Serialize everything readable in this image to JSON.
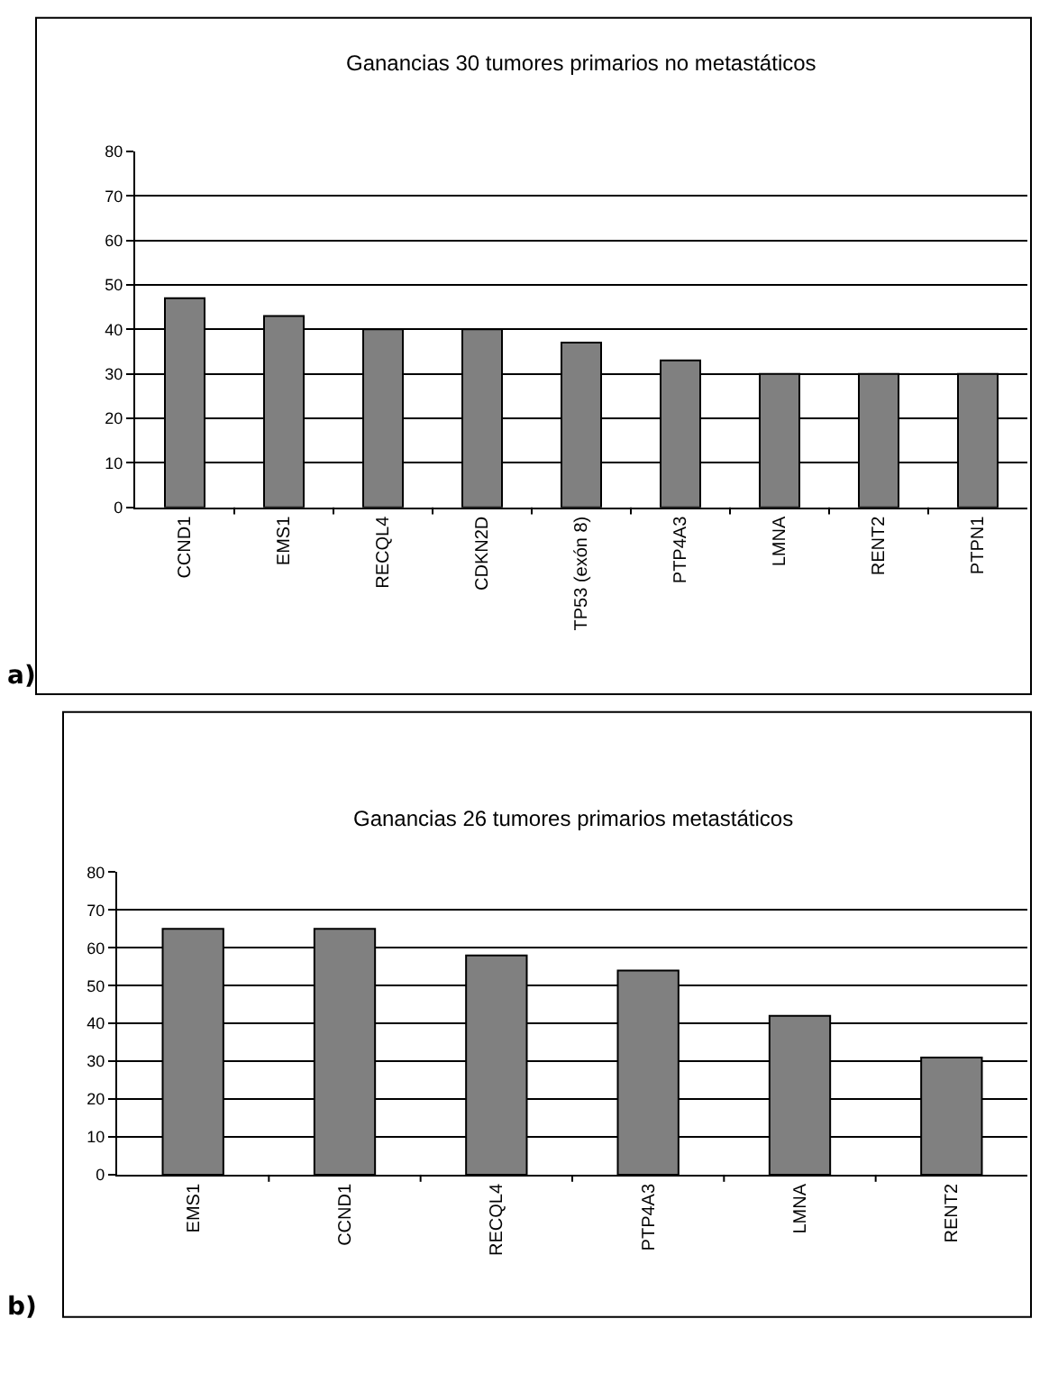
{
  "chart_data": [
    {
      "type": "bar",
      "title": "Ganancias 30 tumores primarios no metastáticos",
      "annotations": [
        "a)"
      ],
      "categories": [
        "CCND1",
        "EMS1",
        "RECQL4",
        "CDKN2D",
        "TP53 (exón 8)",
        "PTP4A3",
        "LMNA",
        "RENT2",
        "PTPN1"
      ],
      "values": [
        47,
        43,
        40,
        40,
        37,
        33,
        30,
        30,
        30
      ],
      "color": "#808080",
      "ylim": [
        0,
        80
      ],
      "yticks": [
        0,
        10,
        20,
        30,
        40,
        50,
        60,
        70,
        80
      ],
      "grid": "y",
      "legend": false
    },
    {
      "type": "bar",
      "title": "Ganancias 26 tumores primarios metastáticos",
      "annotations": [
        "b)"
      ],
      "categories": [
        "EMS1",
        "CCND1",
        "RECQL4",
        "PTP4A3",
        "LMNA",
        "RENT2"
      ],
      "values": [
        65,
        65,
        58,
        54,
        42,
        31
      ],
      "color": "#808080",
      "ylim": [
        0,
        80
      ],
      "yticks": [
        0,
        10,
        20,
        30,
        40,
        50,
        60,
        70,
        80
      ],
      "grid": "y",
      "legend": false
    }
  ]
}
